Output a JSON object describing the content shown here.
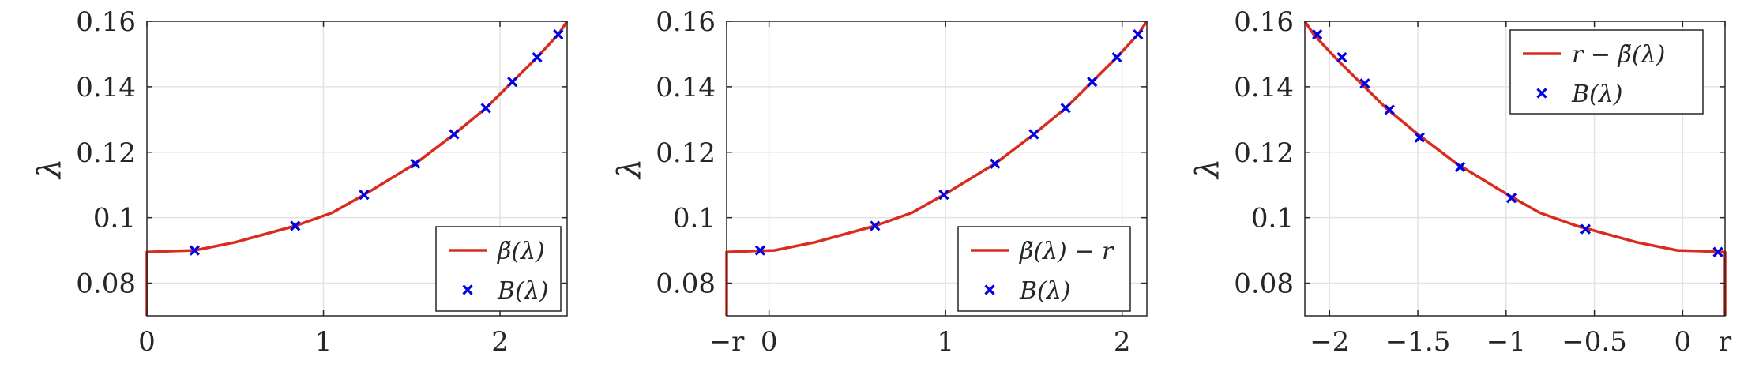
{
  "chart_data": [
    {
      "type": "line",
      "title": "",
      "xlabel": "",
      "ylabel": "λ",
      "xlim": [
        0,
        2.38
      ],
      "ylim": [
        0.07,
        0.16
      ],
      "xticks": [
        {
          "value": 0,
          "label": "0"
        },
        {
          "value": 1,
          "label": "1"
        },
        {
          "value": 2,
          "label": "2"
        }
      ],
      "yticks": [
        {
          "value": 0.08,
          "label": "0.08"
        },
        {
          "value": 0.1,
          "label": "0.1"
        },
        {
          "value": 0.12,
          "label": "0.12"
        },
        {
          "value": 0.14,
          "label": "0.14"
        },
        {
          "value": 0.16,
          "label": "0.16"
        }
      ],
      "grid": true,
      "legend_position": "bottom-right",
      "series": [
        {
          "name": "β̃(λ)",
          "kind": "line",
          "color": "#D92B1F",
          "x": [
            0,
            0,
            0.15,
            0.27,
            0.5,
            0.84,
            1.05,
            1.23,
            1.52,
            1.74,
            1.92,
            2.07,
            2.21,
            2.33,
            2.38
          ],
          "y": [
            0.07,
            0.0895,
            0.0898,
            0.09,
            0.0925,
            0.0975,
            0.1015,
            0.107,
            0.1165,
            0.1255,
            0.1335,
            0.1415,
            0.149,
            0.156,
            0.16
          ]
        },
        {
          "name": "B(λ)",
          "kind": "marker",
          "marker": "x",
          "color": "#0000E6",
          "x": [
            0.27,
            0.84,
            1.23,
            1.52,
            1.74,
            1.92,
            2.07,
            2.21,
            2.33
          ],
          "y": [
            0.09,
            0.0975,
            0.107,
            0.1165,
            0.1255,
            0.1335,
            0.1415,
            0.149,
            0.156
          ]
        }
      ]
    },
    {
      "type": "line",
      "title": "",
      "xlabel": "",
      "ylabel": "λ",
      "xlim": [
        -0.24,
        2.14
      ],
      "ylim": [
        0.07,
        0.16
      ],
      "xticks": [
        {
          "value": -0.24,
          "label": "−r"
        },
        {
          "value": 0,
          "label": "0"
        },
        {
          "value": 1,
          "label": "1"
        },
        {
          "value": 2,
          "label": "2"
        }
      ],
      "yticks": [
        {
          "value": 0.08,
          "label": "0.08"
        },
        {
          "value": 0.1,
          "label": "0.1"
        },
        {
          "value": 0.12,
          "label": "0.12"
        },
        {
          "value": 0.14,
          "label": "0.14"
        },
        {
          "value": 0.16,
          "label": "0.16"
        }
      ],
      "grid": true,
      "legend_position": "bottom-right",
      "series": [
        {
          "name": "β̃(λ) − r",
          "kind": "line",
          "color": "#D92B1F",
          "x": [
            -0.24,
            -0.24,
            -0.09,
            0.03,
            0.26,
            0.6,
            0.81,
            0.99,
            1.28,
            1.5,
            1.68,
            1.83,
            1.97,
            2.09,
            2.14
          ],
          "y": [
            0.07,
            0.0895,
            0.0898,
            0.09,
            0.0925,
            0.0975,
            0.1015,
            0.107,
            0.1165,
            0.1255,
            0.1335,
            0.1415,
            0.149,
            0.156,
            0.16
          ]
        },
        {
          "name": "B(λ)",
          "kind": "marker",
          "marker": "x",
          "color": "#0000E6",
          "x": [
            -0.05,
            0.6,
            0.99,
            1.28,
            1.5,
            1.68,
            1.83,
            1.97,
            2.09
          ],
          "y": [
            0.09,
            0.0975,
            0.107,
            0.1165,
            0.1255,
            0.1335,
            0.1415,
            0.149,
            0.156
          ]
        }
      ]
    },
    {
      "type": "line",
      "title": "",
      "xlabel": "",
      "ylabel": "λ",
      "xlim": [
        -2.14,
        0.24
      ],
      "ylim": [
        0.07,
        0.16
      ],
      "xticks": [
        {
          "value": -2,
          "label": "−2"
        },
        {
          "value": -1.5,
          "label": "−1.5"
        },
        {
          "value": -1,
          "label": "−1"
        },
        {
          "value": -0.5,
          "label": "−0.5"
        },
        {
          "value": 0,
          "label": "0"
        },
        {
          "value": 0.24,
          "label": "r"
        }
      ],
      "yticks": [
        {
          "value": 0.08,
          "label": "0.08"
        },
        {
          "value": 0.1,
          "label": "0.1"
        },
        {
          "value": 0.12,
          "label": "0.12"
        },
        {
          "value": 0.14,
          "label": "0.14"
        },
        {
          "value": 0.16,
          "label": "0.16"
        }
      ],
      "grid": true,
      "legend_position": "top-right",
      "series": [
        {
          "name": "r − β̃(λ)",
          "kind": "line",
          "color": "#D92B1F",
          "x": [
            -2.14,
            -2.09,
            -1.97,
            -1.83,
            -1.68,
            -1.5,
            -1.28,
            -0.99,
            -0.81,
            -0.6,
            -0.26,
            -0.03,
            0.09,
            0.24,
            0.24
          ],
          "y": [
            0.16,
            0.156,
            0.149,
            0.1415,
            0.1335,
            0.1255,
            0.1165,
            0.107,
            0.1015,
            0.0975,
            0.0925,
            0.09,
            0.0898,
            0.0895,
            0.07
          ]
        },
        {
          "name": "B(λ)",
          "kind": "marker",
          "marker": "x",
          "color": "#0000E6",
          "x": [
            -2.07,
            -1.93,
            -1.8,
            -1.66,
            -1.49,
            -1.26,
            -0.97,
            -0.55,
            0.2
          ],
          "y": [
            0.156,
            0.149,
            0.141,
            0.133,
            0.1245,
            0.1155,
            0.106,
            0.0965,
            0.0895
          ]
        }
      ]
    }
  ]
}
